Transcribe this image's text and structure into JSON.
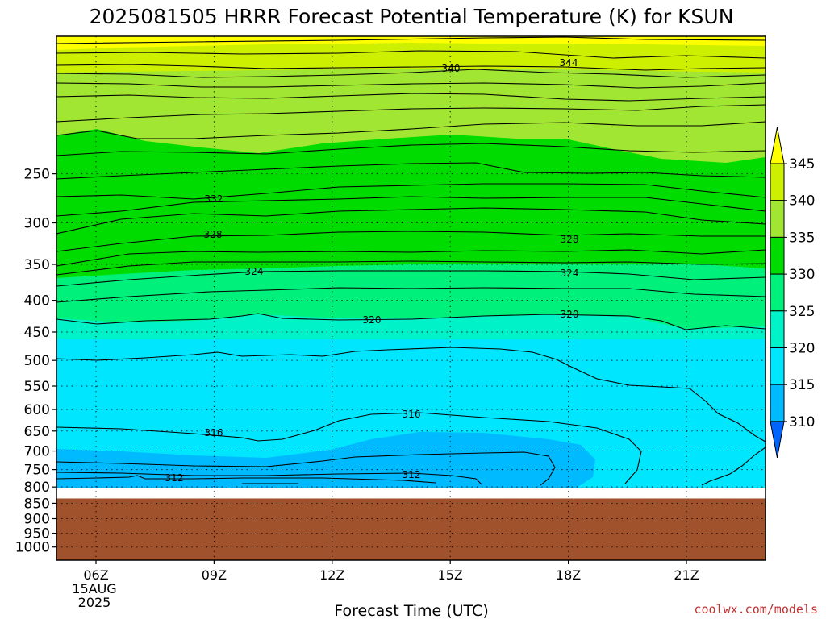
{
  "chart_data": {
    "type": "heatmap",
    "title": "2025081505 HRRR Forecast Potential Temperature (K) for KSUN",
    "xlabel": "Forecast Time (UTC)",
    "ylabel": "",
    "y_scale": "log (pressure, hPa)",
    "ylim": [
      1050,
      150
    ],
    "y_ticks": [
      "250",
      "300",
      "350",
      "400",
      "450",
      "500",
      "550",
      "600",
      "650",
      "700",
      "750",
      "800",
      "850",
      "900",
      "950",
      "1000"
    ],
    "x_ticks": [
      "06Z",
      "09Z",
      "12Z",
      "15Z",
      "18Z",
      "21Z"
    ],
    "x_first_tick_extra": [
      "15AUG",
      "2025"
    ],
    "grid": true,
    "colorbar": {
      "ticks": [
        "345",
        "340",
        "335",
        "330",
        "325",
        "320",
        "315",
        "310"
      ],
      "colors": [
        "#ffff00",
        "#ccf000",
        "#a0e632",
        "#00dc00",
        "#00f07c",
        "#00f2c8",
        "#00e6ff",
        "#00baff",
        "#0064ff"
      ]
    },
    "terrain_color": "#a0522d",
    "surface_pressure_hPa": 835,
    "contour_labels": [
      "344",
      "340",
      "332",
      "328",
      "328",
      "324",
      "324",
      "320",
      "320",
      "316",
      "316",
      "312",
      "312"
    ]
  },
  "credit": "coolwx.com/models"
}
